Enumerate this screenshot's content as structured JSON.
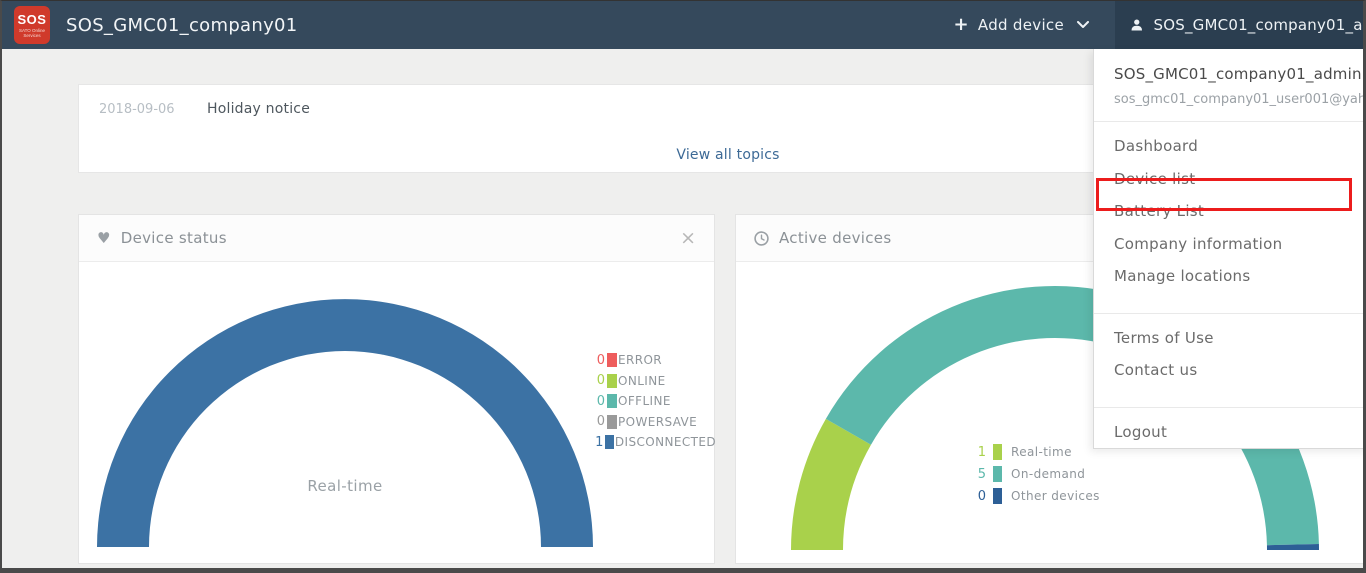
{
  "topbar": {
    "logo": {
      "text": "SOS",
      "subtext": "SATO Online Services",
      "bg": "#d03a2b"
    },
    "title": "SOS_GMC01_company01",
    "add_device_label": "Add device",
    "user_label": "SOS_GMC01_company01_admin"
  },
  "notice_board": {
    "date": "2018-09-06",
    "title": "Holiday notice",
    "view_all_label": "View all topics"
  },
  "cards": {
    "device_status": {
      "icon": "heart-icon",
      "icon_glyph": "♥",
      "title": "Device status",
      "close_label": "×"
    },
    "active_devices": {
      "icon": "clock-icon",
      "title": "Active devices"
    }
  },
  "chart_data": [
    {
      "type": "pie",
      "variant": "semicircle-donut",
      "title": "Device status",
      "center_label": "Real-time",
      "legend_position": "right",
      "series": [
        {
          "name": "ERROR",
          "value": 0,
          "color": "#ee5d5d"
        },
        {
          "name": "ONLINE",
          "value": 0,
          "color": "#a9d14b"
        },
        {
          "name": "OFFLINE",
          "value": 0,
          "color": "#5cb8ab"
        },
        {
          "name": "POWERSAVE",
          "value": 0,
          "color": "#9a9a9a"
        },
        {
          "name": "DISCONNECTED",
          "value": 1,
          "color": "#3c72a4"
        }
      ]
    },
    {
      "type": "pie",
      "variant": "semicircle-donut",
      "title": "Active devices",
      "legend_position": "center",
      "series": [
        {
          "name": "Real-time",
          "value": 1,
          "color": "#a9d14b"
        },
        {
          "name": "On-demand",
          "value": 5,
          "color": "#5cb8ab"
        },
        {
          "name": "Other devices",
          "value": 0,
          "color": "#2d5f96"
        }
      ]
    }
  ],
  "user_menu": {
    "account_name": "SOS_GMC01_company01_admin",
    "account_email": "sos_gmc01_company01_user001@yah",
    "items": [
      {
        "label": "Dashboard"
      },
      {
        "label": "Device list",
        "highlighted": true
      },
      {
        "label": "Battery List"
      },
      {
        "label": "Company information"
      },
      {
        "label": "Manage locations"
      },
      {
        "label": "Terms of Use"
      },
      {
        "label": "Contact us"
      },
      {
        "label": "Logout"
      }
    ]
  },
  "annotation": {
    "highlighted_item": "Device list",
    "color": "#ec1c1c"
  },
  "colors": {
    "topbar_bg": "#35495c",
    "topbar_user_bg": "#2b3e50",
    "page_bg": "#efefee",
    "link": "#3d6a96"
  }
}
